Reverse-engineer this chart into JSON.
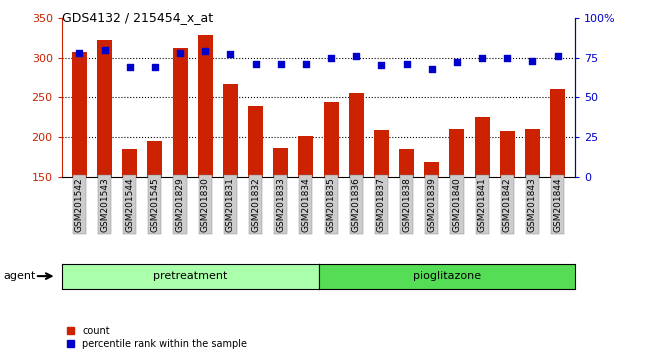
{
  "title": "GDS4132 / 215454_x_at",
  "categories": [
    "GSM201542",
    "GSM201543",
    "GSM201544",
    "GSM201545",
    "GSM201829",
    "GSM201830",
    "GSM201831",
    "GSM201832",
    "GSM201833",
    "GSM201834",
    "GSM201835",
    "GSM201836",
    "GSM201837",
    "GSM201838",
    "GSM201839",
    "GSM201840",
    "GSM201841",
    "GSM201842",
    "GSM201843",
    "GSM201844"
  ],
  "count_values": [
    307,
    322,
    185,
    195,
    312,
    328,
    267,
    239,
    187,
    201,
    244,
    255,
    209,
    185,
    169,
    210,
    225,
    208,
    210,
    261
  ],
  "percentile_values": [
    78,
    80,
    69,
    69,
    78,
    79,
    77,
    71,
    71,
    71,
    75,
    76,
    70,
    71,
    68,
    72,
    75,
    75,
    73,
    76
  ],
  "bar_color": "#cc2200",
  "dot_color": "#0000cc",
  "ylim_left": [
    150,
    350
  ],
  "ylim_right": [
    0,
    100
  ],
  "yticks_left": [
    150,
    200,
    250,
    300,
    350
  ],
  "yticks_right": [
    0,
    25,
    50,
    75,
    100
  ],
  "yticklabels_right": [
    "0",
    "25",
    "50",
    "75",
    "100%"
  ],
  "grid_values": [
    200,
    250,
    300
  ],
  "group_pretreatment_label": "pretreatment",
  "group_pioglitazone_label": "pioglitazone",
  "group_color_pre": "#aaffaa",
  "group_color_pio": "#55dd55",
  "agent_label": "agent",
  "legend_count_label": "count",
  "legend_percentile_label": "percentile rank within the sample",
  "tick_bg_color": "#cccccc",
  "n_pre": 10,
  "n_pio": 10
}
